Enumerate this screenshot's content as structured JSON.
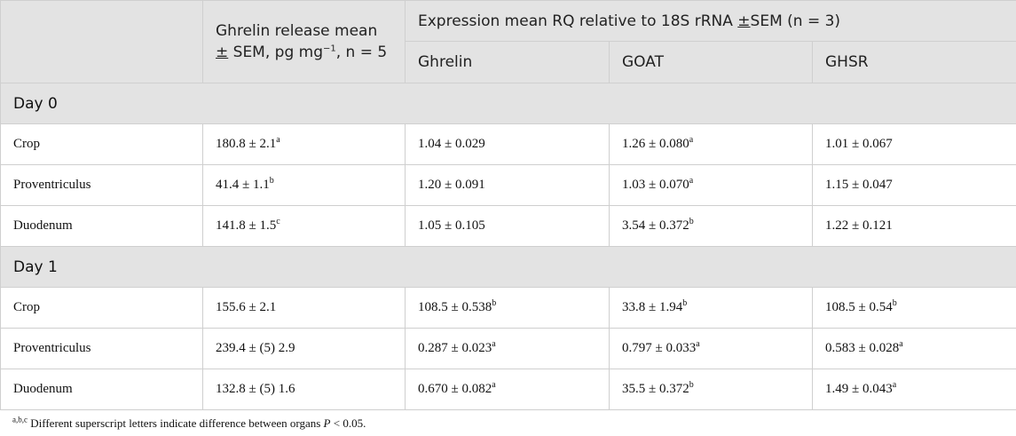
{
  "header": {
    "col0": "",
    "release_a": "Ghrelin release mean ",
    "release_pm": "±",
    "release_b": " SEM, pg mg",
    "release_exp": "−1",
    "release_c": ", n = 5",
    "expr_a": "Expression mean RQ relative to 18S rRNA ",
    "expr_pm": "±",
    "expr_b": "SEM (n = 3)",
    "sub": [
      "Ghrelin",
      "GOAT",
      "GHSR"
    ]
  },
  "sections": [
    {
      "label": "Day 0",
      "rows": [
        {
          "organ": "Crop",
          "cells": [
            {
              "v": "180.8 ± 2.1",
              "s": "a"
            },
            {
              "v": "1.04 ± 0.029",
              "s": ""
            },
            {
              "v": "1.26 ± 0.080",
              "s": "a"
            },
            {
              "v": "1.01 ± 0.067",
              "s": ""
            }
          ]
        },
        {
          "organ": "Proventriculus",
          "cells": [
            {
              "v": "41.4 ± 1.1",
              "s": "b"
            },
            {
              "v": "1.20 ± 0.091",
              "s": ""
            },
            {
              "v": "1.03 ± 0.070",
              "s": "a"
            },
            {
              "v": "1.15 ± 0.047",
              "s": ""
            }
          ]
        },
        {
          "organ": "Duodenum",
          "cells": [
            {
              "v": "141.8 ± 1.5",
              "s": "c"
            },
            {
              "v": "1.05 ± 0.105",
              "s": ""
            },
            {
              "v": "3.54 ± 0.372",
              "s": "b"
            },
            {
              "v": "1.22 ± 0.121",
              "s": ""
            }
          ]
        }
      ]
    },
    {
      "label": "Day 1",
      "rows": [
        {
          "organ": "Crop",
          "cells": [
            {
              "v": "155.6 ± 2.1",
              "s": ""
            },
            {
              "v": "108.5 ± 0.538",
              "s": "b"
            },
            {
              "v": "33.8 ± 1.94",
              "s": "b"
            },
            {
              "v": "108.5 ± 0.54",
              "s": "b"
            }
          ]
        },
        {
          "organ": "Proventriculus",
          "cells": [
            {
              "v": "239.4 ± (5) 2.9",
              "s": ""
            },
            {
              "v": "0.287 ± 0.023",
              "s": "a"
            },
            {
              "v": "0.797 ± 0.033",
              "s": "a"
            },
            {
              "v": "0.583 ± 0.028",
              "s": "a"
            }
          ]
        },
        {
          "organ": "Duodenum",
          "cells": [
            {
              "v": "132.8 ± (5) 1.6",
              "s": ""
            },
            {
              "v": "0.670 ± 0.082",
              "s": "a"
            },
            {
              "v": "35.5 ± 0.372",
              "s": "b"
            },
            {
              "v": "1.49 ± 0.043",
              "s": "a"
            }
          ]
        }
      ]
    }
  ],
  "footnote": {
    "sup": "a,b,c",
    "text_a": " Different superscript letters indicate difference between organs ",
    "p": "P",
    "text_b": " < 0.05."
  }
}
